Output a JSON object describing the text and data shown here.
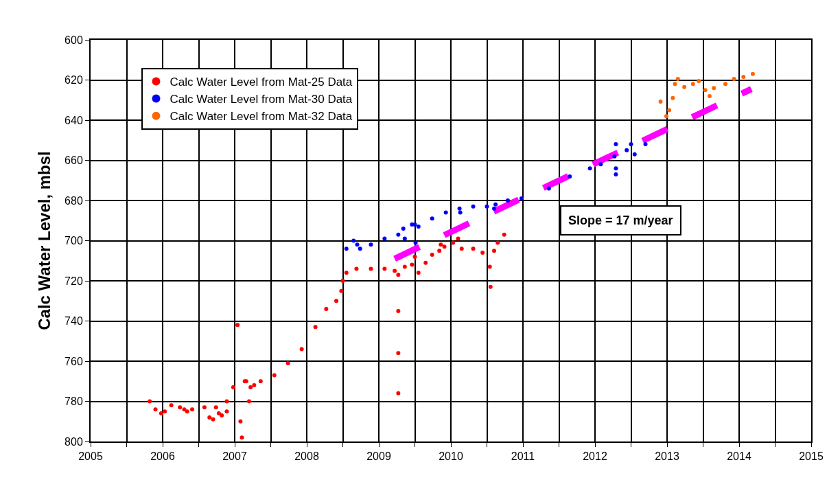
{
  "chart_data": {
    "type": "scatter",
    "ylabel": "Calc Water Level, mbsl",
    "marker": "circle",
    "grid": true,
    "legend": "top left",
    "xlim": [
      2005,
      2015
    ],
    "xticks": [
      2005,
      {
        "value": 2005.5,
        "label": null
      },
      2006,
      {
        "value": 2006.5,
        "label": null
      },
      2007,
      {
        "value": 2007.5,
        "label": null
      },
      2008,
      {
        "value": 2008.5,
        "label": null
      },
      2009,
      {
        "value": 2009.5,
        "label": null
      },
      2010,
      {
        "value": 2010.5,
        "label": null
      },
      2011,
      {
        "value": 2011.5,
        "label": null
      },
      2012,
      {
        "value": 2012.5,
        "label": null
      },
      2013,
      {
        "value": 2013.5,
        "label": null
      },
      2014,
      {
        "value": 2014.5,
        "label": null
      },
      2015
    ],
    "ylim": [
      800,
      600
    ],
    "yticks": [
      600,
      620,
      640,
      660,
      680,
      700,
      720,
      740,
      760,
      780,
      800
    ],
    "annotations": [
      "Slope = 17 m/year"
    ],
    "series": [
      {
        "type": "line",
        "line_style": "dashed",
        "marker": "none",
        "color": "#ff00ff",
        "x": [
          2009.22,
          2014.17
        ],
        "values": [
          709,
          624.5
        ]
      },
      {
        "name": "Calc Water Level from Mat-25 Data",
        "color": "#ff0000",
        "x": [
          2005.82,
          2005.9,
          2005.98,
          2006.03,
          2006.12,
          2006.24,
          2006.3,
          2006.34,
          2006.41,
          2006.58,
          2006.65,
          2006.7,
          2006.74,
          2006.78,
          2006.82,
          2006.89,
          2006.89,
          2006.98,
          2007.08,
          2007.1,
          2007.04,
          2007.14,
          2007.16,
          2007.2,
          2007.22,
          2007.27,
          2007.36,
          2007.55,
          2007.74,
          2007.93,
          2008.12,
          2008.27,
          2008.41,
          2008.48,
          2008.5,
          2008.55,
          2008.69,
          2008.89,
          2009.08,
          2009.22,
          2009.27,
          2009.27,
          2009.27,
          2009.27,
          2009.36,
          2009.46,
          2009.5,
          2009.55,
          2009.65,
          2009.74,
          2009.84,
          2009.86,
          2009.91,
          2010.03,
          2010.1,
          2010.15,
          2010.31,
          2010.44,
          2010.54,
          2010.55,
          2010.6,
          2010.65,
          2010.74
        ],
        "values": [
          780,
          784,
          786,
          785,
          782,
          783,
          784,
          785,
          784,
          783,
          788,
          789,
          783,
          786,
          787,
          785,
          780,
          773,
          790,
          798,
          742,
          770,
          770,
          780,
          773,
          772,
          770,
          767,
          761,
          754,
          743,
          734,
          730,
          725,
          720,
          716,
          714,
          714,
          714,
          715,
          717,
          735,
          756,
          776,
          713,
          712,
          708,
          716,
          711,
          707,
          705,
          702,
          703,
          701,
          699,
          704,
          704,
          706,
          713,
          723,
          705,
          701,
          697
        ]
      },
      {
        "name": "Calc Water Level from Mat-30 Data",
        "color": "#0000ff",
        "x": [
          2008.55,
          2008.65,
          2008.7,
          2008.74,
          2008.89,
          2009.08,
          2009.27,
          2009.34,
          2009.36,
          2009.46,
          2009.5,
          2009.51,
          2009.55,
          2009.74,
          2009.93,
          2010.12,
          2010.13,
          2010.31,
          2010.5,
          2010.6,
          2010.62,
          2010.79,
          2010.98,
          2011.36,
          2011.65,
          2011.93,
          2012.08,
          2012.27,
          2012.29,
          2012.29,
          2012.29,
          2012.44,
          2012.5,
          2012.55,
          2012.7
        ],
        "values": [
          704,
          700,
          702,
          704,
          702,
          699,
          697,
          694,
          699,
          692,
          692,
          701,
          693,
          689,
          686,
          684,
          686,
          683,
          683,
          684,
          682,
          680,
          679,
          674,
          668,
          664,
          662,
          658,
          652,
          664,
          667,
          655,
          652,
          657,
          652
        ]
      },
      {
        "name": "Calc Water Level from Mat-32 Data",
        "color": "#ff6600",
        "x": [
          2012.91,
          2012.99,
          2013.03,
          2013.08,
          2013.11,
          2013.15,
          2013.24,
          2013.36,
          2013.44,
          2013.53,
          2013.59,
          2013.65,
          2013.81,
          2013.93,
          2014.06,
          2014.19
        ],
        "values": [
          630.8,
          638,
          635,
          629,
          622,
          619.5,
          623.5,
          622,
          620.5,
          625,
          628,
          624,
          622,
          619.5,
          618.5,
          617
        ]
      }
    ]
  }
}
